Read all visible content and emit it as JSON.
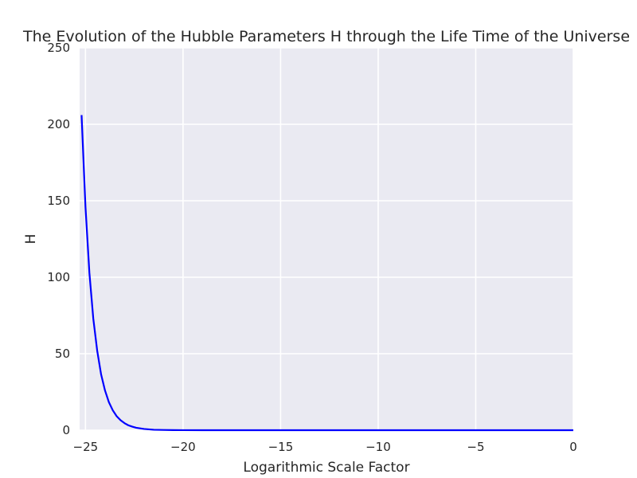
{
  "chart_data": {
    "type": "line",
    "title": "The Evolution of the Hubble Parameters H through the Life Time of the Universe",
    "xlabel": "Logarithmic Scale Factor",
    "ylabel": "H",
    "xlim": [
      -25.3,
      0
    ],
    "ylim": [
      0,
      250
    ],
    "x_ticks": [
      -25,
      -20,
      -15,
      -10,
      -5,
      0
    ],
    "x_tick_labels": [
      "−25",
      "−20",
      "−15",
      "−10",
      "−5",
      "0"
    ],
    "y_ticks": [
      0,
      50,
      100,
      150,
      200,
      250
    ],
    "y_tick_labels": [
      "0",
      "50",
      "100",
      "150",
      "200",
      "250"
    ],
    "grid": true,
    "background": "#eaeaf2",
    "grid_color": "#ffffff",
    "series": [
      {
        "color": "#0000ff",
        "x": [
          -25.2,
          -25.0,
          -24.8,
          -24.6,
          -24.4,
          -24.2,
          -24.0,
          -23.8,
          -23.6,
          -23.4,
          -23.2,
          -23.0,
          -22.8,
          -22.6,
          -22.4,
          -22.2,
          -22.0,
          -21.5,
          -21.0,
          -20.5,
          -20.0,
          -15.0,
          -10.0,
          -5.0,
          0.0
        ],
        "y": [
          206,
          146,
          103,
          73,
          52,
          36.5,
          26,
          18.3,
          13,
          9.1,
          6.5,
          4.6,
          3.2,
          2.3,
          1.6,
          1.2,
          0.8,
          0.3,
          0.15,
          0.05,
          0.02,
          0,
          0,
          0,
          0
        ]
      }
    ]
  }
}
